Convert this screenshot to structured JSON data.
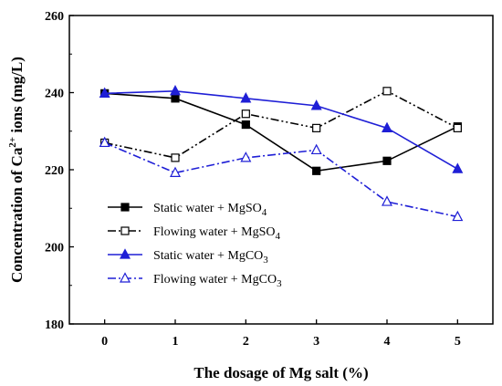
{
  "chart_data": {
    "type": "line",
    "x": [
      0,
      1,
      2,
      3,
      4,
      5
    ],
    "xlabel": "The dosage of Mg salt (%)",
    "ylabel_prefix": "Concentration of Ca",
    "ylabel_sup": "2+",
    "ylabel_suffix": " ions (mg/L)",
    "xlim": [
      -0.5,
      5.5
    ],
    "ylim": [
      180,
      260
    ],
    "xticks": [
      "0",
      "1",
      "2",
      "3",
      "4",
      "5"
    ],
    "yticks": [
      "180",
      "200",
      "220",
      "240",
      "260"
    ],
    "grid": false,
    "legend_position": "lower-left",
    "series": [
      {
        "name_main": "Static water + MgSO",
        "name_sub": "4",
        "values": [
          239.8,
          238.5,
          231.7,
          219.7,
          222.3,
          231.2
        ],
        "color": "#000000",
        "dash": "solid",
        "marker": "square-filled"
      },
      {
        "name_main": "Flowing water + MgSO",
        "name_sub": "4",
        "values": [
          227.0,
          223.1,
          234.5,
          230.8,
          240.4,
          230.8
        ],
        "color": "#000000",
        "dash": "dash-dot-dot",
        "marker": "square-open"
      },
      {
        "name_main": "Static water + MgCO",
        "name_sub": "3",
        "values": [
          239.8,
          240.4,
          238.5,
          236.6,
          230.8,
          220.2
        ],
        "color": "#1f1fd6",
        "dash": "solid",
        "marker": "triangle-filled"
      },
      {
        "name_main": "Flowing water + MgCO",
        "name_sub": "3",
        "values": [
          227.0,
          219.2,
          223.1,
          225.1,
          211.7,
          207.8
        ],
        "color": "#1f1fd6",
        "dash": "dash-dot",
        "marker": "triangle-open"
      }
    ]
  }
}
